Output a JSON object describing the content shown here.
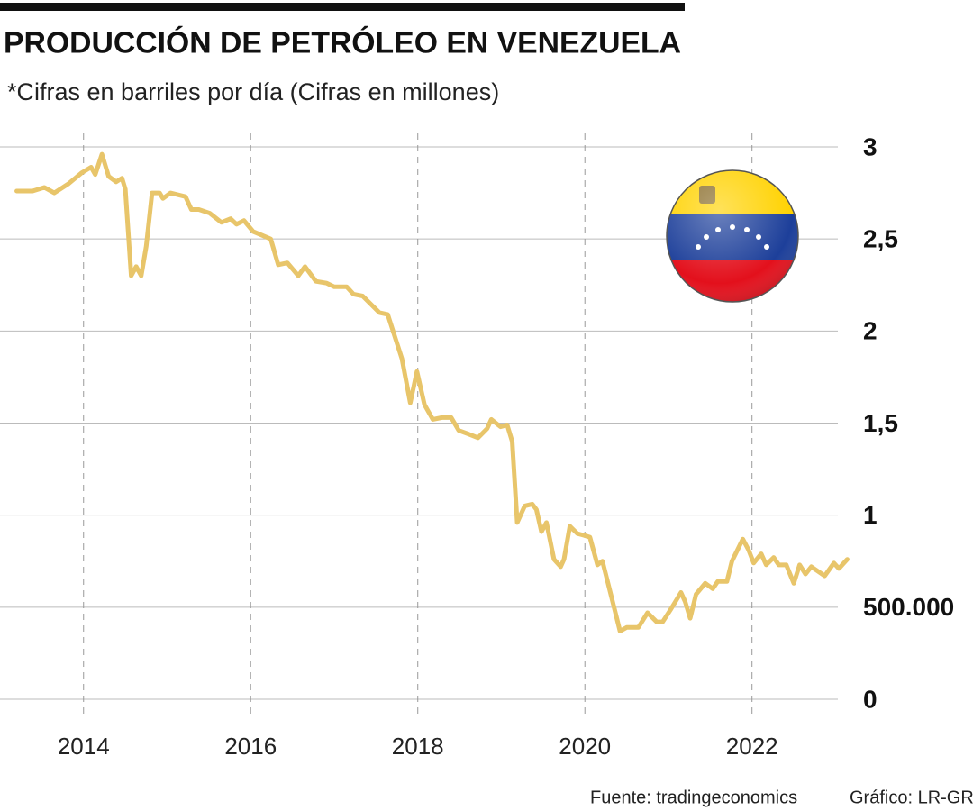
{
  "chart_data": {
    "type": "line",
    "title": "PRODUCCIÓN DE PETRÓLEO EN VENEZUELA",
    "subtitle": "*Cifras en barriles por día (Cifras en millones)",
    "source": "Fuente: tradingeconomics",
    "credit": "Gráfico: LR-GR",
    "color": "#e8c56a",
    "grid": true,
    "xlim": [
      2013.0,
      2023.2
    ],
    "xticks": [
      2014,
      2016,
      2018,
      2020,
      2022
    ],
    "ylim": [
      0,
      3
    ],
    "yticks": [
      0,
      {
        "value": 0.5,
        "label": "500.000"
      },
      1,
      {
        "value": 1.5,
        "label": "1,5"
      },
      2,
      {
        "value": 2.5,
        "label": "2,5"
      },
      3
    ],
    "x": [
      2013.2,
      2013.39,
      2013.53,
      2013.65,
      2013.82,
      2013.98,
      2014.09,
      2014.14,
      2014.22,
      2014.3,
      2014.39,
      2014.46,
      2014.5,
      2014.57,
      2014.63,
      2014.69,
      2014.75,
      2014.82,
      2014.91,
      2014.95,
      2015.04,
      2015.22,
      2015.29,
      2015.38,
      2015.51,
      2015.65,
      2015.76,
      2015.83,
      2015.92,
      2016.03,
      2016.24,
      2016.33,
      2016.44,
      2016.57,
      2016.65,
      2016.78,
      2016.91,
      2017.0,
      2017.15,
      2017.23,
      2017.34,
      2017.54,
      2017.64,
      2017.81,
      2017.91,
      2017.99,
      2018.08,
      2018.18,
      2018.29,
      2018.4,
      2018.49,
      2018.61,
      2018.72,
      2018.83,
      2018.88,
      2018.99,
      2019.07,
      2019.13,
      2019.19,
      2019.28,
      2019.37,
      2019.42,
      2019.48,
      2019.54,
      2019.63,
      2019.71,
      2019.75,
      2019.82,
      2019.91,
      2019.99,
      2020.06,
      2020.15,
      2020.21,
      2020.31,
      2020.42,
      2020.5,
      2020.64,
      2020.75,
      2020.86,
      2020.93,
      2021.03,
      2021.15,
      2021.2,
      2021.26,
      2021.33,
      2021.44,
      2021.53,
      2021.59,
      2021.7,
      2021.76,
      2021.89,
      2021.96,
      2022.02,
      2022.11,
      2022.17,
      2022.26,
      2022.32,
      2022.41,
      2022.5,
      2022.57,
      2022.64,
      2022.71,
      2022.87,
      2022.98,
      2023.04,
      2023.14
    ],
    "values": [
      2.76,
      2.76,
      2.78,
      2.75,
      2.8,
      2.86,
      2.89,
      2.85,
      2.96,
      2.84,
      2.81,
      2.83,
      2.77,
      2.3,
      2.35,
      2.3,
      2.46,
      2.75,
      2.75,
      2.72,
      2.75,
      2.73,
      2.66,
      2.66,
      2.64,
      2.59,
      2.61,
      2.58,
      2.6,
      2.54,
      2.5,
      2.36,
      2.37,
      2.3,
      2.35,
      2.27,
      2.26,
      2.24,
      2.24,
      2.2,
      2.19,
      2.1,
      2.09,
      1.85,
      1.61,
      1.78,
      1.6,
      1.52,
      1.53,
      1.53,
      1.46,
      1.44,
      1.42,
      1.47,
      1.52,
      1.48,
      1.49,
      1.4,
      0.96,
      1.05,
      1.06,
      1.03,
      0.91,
      0.96,
      0.76,
      0.72,
      0.76,
      0.94,
      0.9,
      0.89,
      0.88,
      0.73,
      0.75,
      0.57,
      0.37,
      0.39,
      0.39,
      0.47,
      0.42,
      0.42,
      0.49,
      0.58,
      0.53,
      0.44,
      0.57,
      0.63,
      0.6,
      0.64,
      0.64,
      0.75,
      0.87,
      0.81,
      0.74,
      0.79,
      0.73,
      0.77,
      0.73,
      0.73,
      0.63,
      0.73,
      0.68,
      0.72,
      0.67,
      0.74,
      0.71,
      0.76
    ]
  }
}
